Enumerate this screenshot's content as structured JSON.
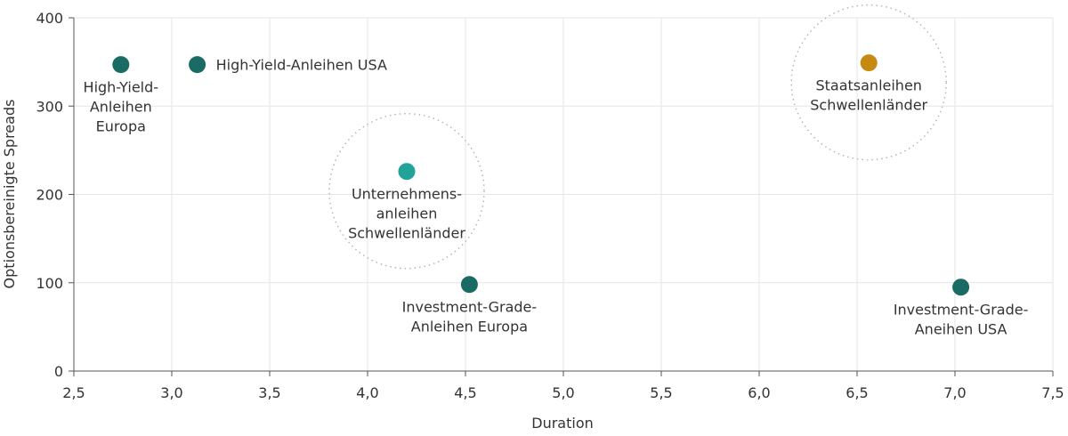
{
  "chart_data": {
    "type": "scatter",
    "xlabel": "Duration",
    "ylabel": "Optionsbereinigte Spreads",
    "xlim": [
      2.5,
      7.5
    ],
    "ylim": [
      0,
      400
    ],
    "x_ticks": [
      2.5,
      3.0,
      3.5,
      4.0,
      4.5,
      5.0,
      5.5,
      6.0,
      6.5,
      7.0,
      7.5
    ],
    "x_tick_labels": [
      "2,5",
      "3,0",
      "3,5",
      "4,0",
      "4,5",
      "5,0",
      "5,5",
      "6,0",
      "6,5",
      "7,0",
      "7,5"
    ],
    "y_ticks": [
      0,
      100,
      200,
      300,
      400
    ],
    "y_tick_labels": [
      "0",
      "100",
      "200",
      "300",
      "400"
    ],
    "grid": true,
    "points": [
      {
        "x": 2.74,
        "y": 347,
        "color": "#1a6b63",
        "label": [
          "High-Yield-",
          "Anleihen",
          "Europa"
        ],
        "label_pos": "below",
        "highlight": false
      },
      {
        "x": 3.13,
        "y": 347,
        "color": "#1a6b63",
        "label": [
          "High-Yield-Anleihen USA"
        ],
        "label_pos": "right",
        "highlight": false
      },
      {
        "x": 4.2,
        "y": 226,
        "color": "#21a39a",
        "label": [
          "Unternehmens-",
          "anleihen",
          "Schwellenländer"
        ],
        "label_pos": "below",
        "highlight": true
      },
      {
        "x": 4.52,
        "y": 98,
        "color": "#1a6b63",
        "label": [
          "Investment-Grade-",
          "Anleihen Europa"
        ],
        "label_pos": "below",
        "highlight": false
      },
      {
        "x": 6.56,
        "y": 349,
        "color": "#c68a12",
        "label": [
          "Staatsanleihen",
          "Schwellenländer"
        ],
        "label_pos": "below",
        "highlight": true
      },
      {
        "x": 7.03,
        "y": 95,
        "color": "#1a6b63",
        "label": [
          "Investment-Grade-",
          "Aneihen USA"
        ],
        "label_pos": "below",
        "highlight": false
      }
    ]
  }
}
